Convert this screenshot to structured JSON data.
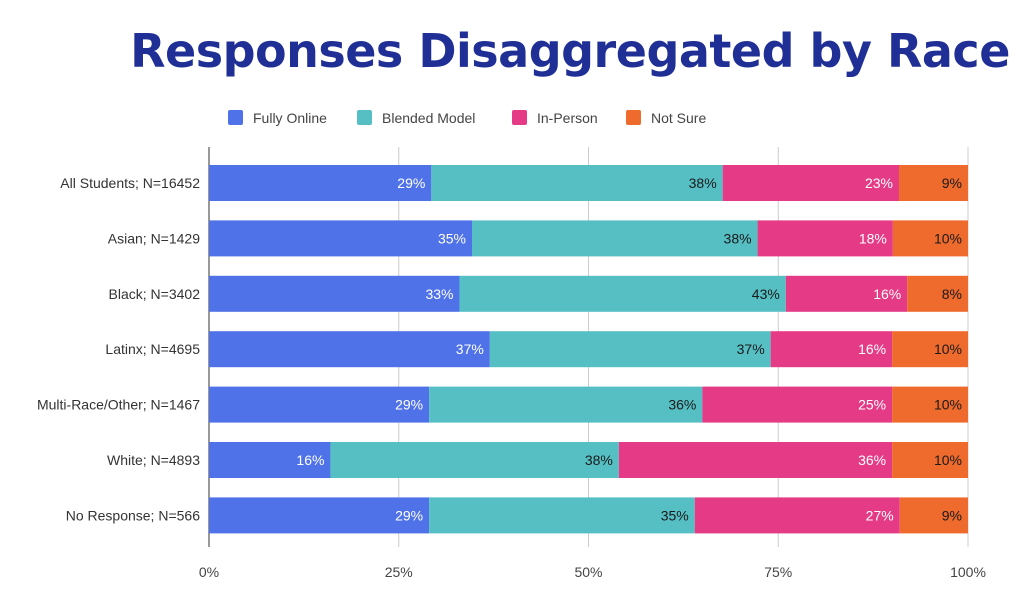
{
  "chart_data": {
    "type": "bar",
    "orientation": "horizontal",
    "stacked": "percent",
    "title": "Responses Disaggregated by Race",
    "xlabel": "",
    "ylabel": "",
    "xlim": [
      0,
      100
    ],
    "xticks": [
      "0%",
      "25%",
      "50%",
      "75%",
      "100%"
    ],
    "legend_position": "top",
    "grid": true,
    "categories": [
      "All Students; N=16452",
      "Asian; N=1429",
      "Black; N=3402",
      "Latinx; N=4695",
      "Multi-Race/Other; N=1467",
      "White; N=4893",
      "No Response; N=566"
    ],
    "series": [
      {
        "name": "Fully Online",
        "color": "#4f72e8",
        "label_color": "#ffffff",
        "values": [
          29,
          35,
          33,
          37,
          29,
          16,
          29
        ],
        "labels": [
          "29%",
          "35%",
          "33%",
          "37%",
          "29%",
          "16%",
          "29%"
        ]
      },
      {
        "name": "Blended Model",
        "color": "#56bfc4",
        "label_color": "#1a1a1a",
        "values": [
          38,
          38,
          43,
          37,
          36,
          38,
          35
        ],
        "labels": [
          "38%",
          "38%",
          "43%",
          "37%",
          "36%",
          "38%",
          "35%"
        ]
      },
      {
        "name": "In-Person",
        "color": "#e53a85",
        "label_color": "#ffffff",
        "values": [
          23,
          18,
          16,
          16,
          25,
          36,
          27
        ],
        "labels": [
          "23%",
          "18%",
          "16%",
          "16%",
          "25%",
          "36%",
          "27%"
        ]
      },
      {
        "name": "Not Sure",
        "color": "#ee6a2d",
        "label_color": "#1a1a1a",
        "values": [
          9,
          10,
          8,
          10,
          10,
          10,
          9
        ],
        "labels": [
          "9%",
          "10%",
          "8%",
          "10%",
          "10%",
          "10%",
          "9%"
        ]
      }
    ]
  }
}
